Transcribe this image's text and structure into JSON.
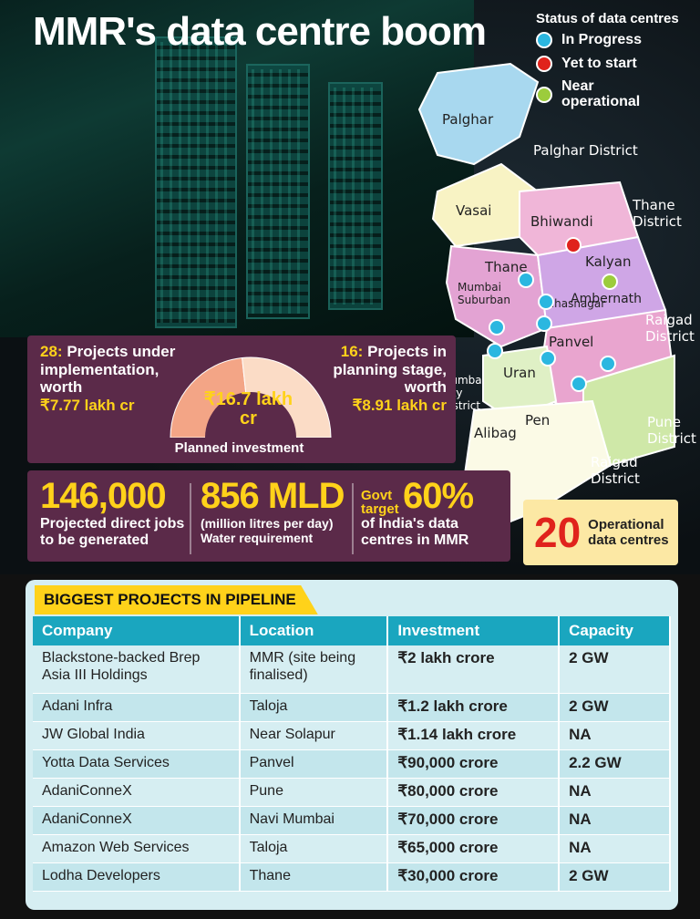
{
  "title": "MMR's data centre boom",
  "legend": {
    "title": "Status of data centres",
    "items": [
      {
        "label": "In Progress",
        "color": "#2bb7e0"
      },
      {
        "label": "Yet to start",
        "color": "#e0231c"
      },
      {
        "label": "Near operational",
        "color": "#9ccc3c"
      }
    ]
  },
  "map": {
    "labels": {
      "palghar": "Palghar",
      "palghar_district": "Palghar District",
      "vasai": "Vasai",
      "bhiwandi": "Bhiwandi",
      "thane_district": "Thane District",
      "thane": "Thane",
      "kalyan": "Kalyan",
      "ulhasnagar": "Ulhasnagar",
      "ambernath": "Ambernath",
      "mumbai_suburban": "Mumbai Suburban",
      "raigad_district": "Raigad District",
      "panvel": "Panvel",
      "mumbai_city": "Mumbai City District",
      "uran": "Uran",
      "alibag": "Alibag",
      "pen": "Pen",
      "pune_district": "Pune District",
      "raigad_district_2": "Raigad District"
    }
  },
  "investment": {
    "left_count": "28:",
    "left_text": "Projects under implementation, worth",
    "left_value": "₹7.77 lakh cr",
    "right_count": "16:",
    "right_text": "Projects in planning stage, worth",
    "right_value": "₹8.91 lakh cr",
    "total": "₹16.7 lakh cr",
    "caption": "Planned investment",
    "left_lakh_cr": 7.77,
    "right_lakh_cr": 8.91
  },
  "stats": {
    "jobs_value": "146,000",
    "jobs_text": "Projected direct jobs to be generated",
    "water_value": "856 MLD",
    "water_text": "(million litres per day) Water requirement",
    "govt_label": "Govt target",
    "govt_value": "60%",
    "govt_text": "of India's data centres in MMR"
  },
  "operational": {
    "count": "20",
    "text": "Operational data centres"
  },
  "table": {
    "title": "BIGGEST PROJECTS IN PIPELINE",
    "headers": [
      "Company",
      "Location",
      "Investment",
      "Capacity"
    ],
    "rows": [
      [
        "Blackstone-backed Brep Asia III Holdings",
        "MMR (site being finalised)",
        "₹2 lakh crore",
        "2 GW"
      ],
      [
        "Adani Infra",
        "Taloja",
        "₹1.2 lakh crore",
        "2 GW"
      ],
      [
        "JW Global India",
        "Near Solapur",
        "₹1.14 lakh crore",
        "NA"
      ],
      [
        "Yotta Data Services",
        "Panvel",
        "₹90,000 crore",
        "2.2 GW"
      ],
      [
        "AdaniConneX",
        "Pune",
        "₹80,000 crore",
        "NA"
      ],
      [
        "AdaniConneX",
        "Navi Mumbai",
        "₹70,000 crore",
        "NA"
      ],
      [
        "Amazon Web Services",
        "Taloja",
        "₹65,000 crore",
        "NA"
      ],
      [
        "Lodha Developers",
        "Thane",
        "₹30,000 crore",
        "2 GW"
      ]
    ]
  }
}
